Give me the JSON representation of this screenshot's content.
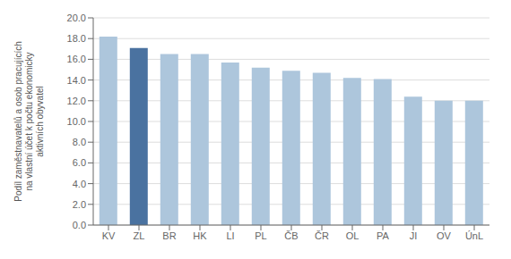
{
  "chart_data": {
    "type": "bar",
    "ylabel": "Podíl zaměstnavatelů a osob pracujících\nna vlastní účet k počtu ekonomicky\naktivních obyvatel",
    "categories": [
      "KV",
      "ZL",
      "BR",
      "HK",
      "LI",
      "PL",
      "ČB",
      "ČR",
      "OL",
      "PA",
      "JI",
      "OV",
      "ÚnL"
    ],
    "values": [
      18.2,
      17.1,
      16.5,
      16.5,
      15.7,
      15.2,
      14.9,
      14.7,
      14.2,
      14.1,
      12.4,
      12.0,
      12.0
    ],
    "colors": [
      "#adc6dc",
      "#4a72a0",
      "#adc6dc",
      "#adc6dc",
      "#adc6dc",
      "#adc6dc",
      "#adc6dc",
      "#adc6dc",
      "#adc6dc",
      "#adc6dc",
      "#adc6dc",
      "#adc6dc",
      "#adc6dc"
    ],
    "ylim": [
      0,
      20
    ],
    "yticks": [
      {
        "value": 0.0,
        "label": "0.0"
      },
      {
        "value": 2.0,
        "label": "2.0"
      },
      {
        "value": 4.0,
        "label": "4.0"
      },
      {
        "value": 6.0,
        "label": "6.0"
      },
      {
        "value": 8.0,
        "label": "8.0"
      },
      {
        "value": 10.0,
        "label": "10.0"
      },
      {
        "value": 12.0,
        "label": "12.0"
      },
      {
        "value": 14.0,
        "label": "14.0"
      },
      {
        "value": 16.0,
        "label": "16.0"
      },
      {
        "value": 18.0,
        "label": "18.0"
      },
      {
        "value": 20.0,
        "label": "20.0"
      }
    ],
    "grid": true
  }
}
